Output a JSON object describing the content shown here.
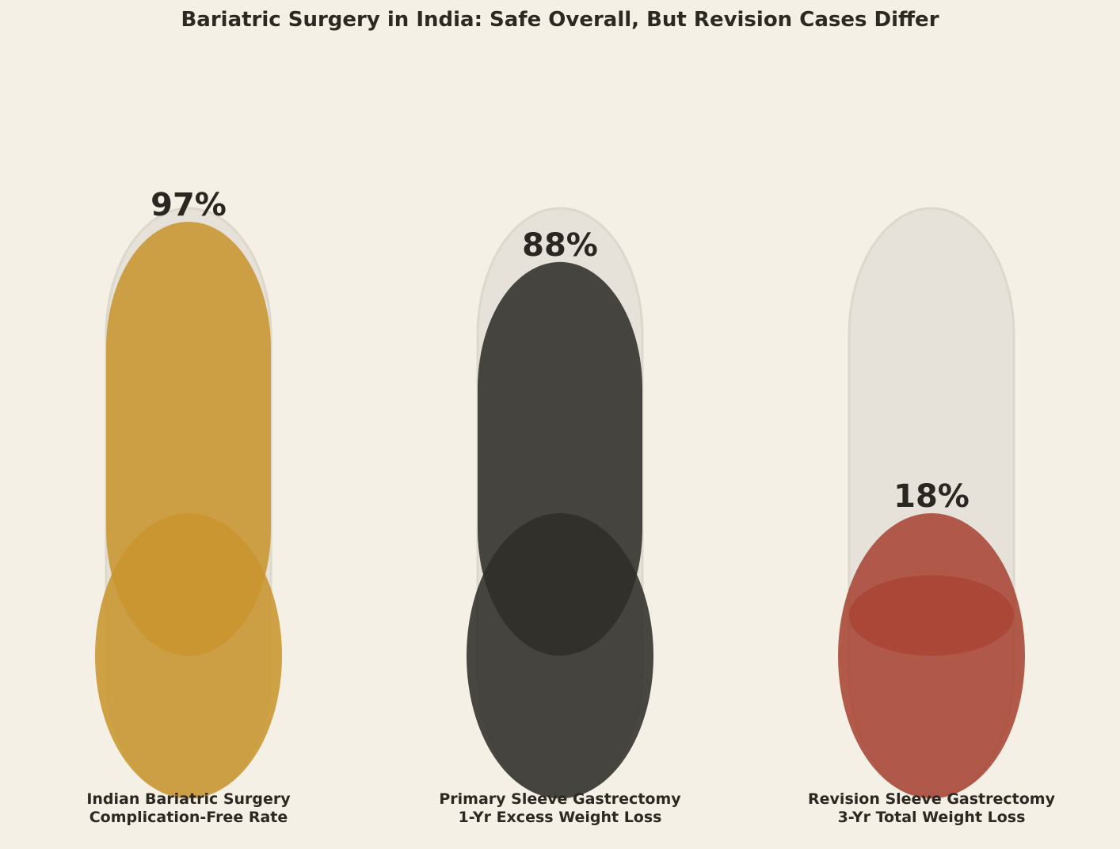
{
  "chart_data": {
    "type": "bar",
    "title": "Bariatric Surgery in India: Safe Overall, But Revision Cases Differ",
    "unit": "%",
    "ylim": [
      0,
      100
    ],
    "grid": false,
    "legend": "none",
    "categories": [
      [
        "Indian Bariatric Surgery",
        "Complication-Free Rate"
      ],
      [
        "Primary Sleeve Gastrectomy",
        "1-Yr Excess Weight Loss"
      ],
      [
        "Revision Sleeve Gastrectomy",
        "3-Yr Total Weight Loss"
      ]
    ],
    "values": [
      97,
      88,
      18
    ],
    "value_labels": [
      "97%",
      "88%",
      "18%"
    ],
    "colors": [
      "#c9952f",
      "#2f2d29",
      "#a84434"
    ],
    "track_color": "#e6e2d9",
    "background": "#f4f0e6"
  }
}
